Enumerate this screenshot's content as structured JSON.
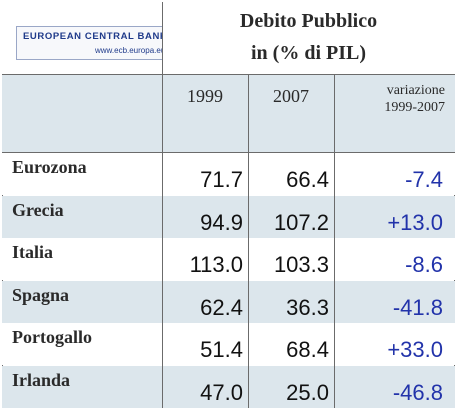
{
  "logo": {
    "name": "EUROPEAN CENTRAL BANK©",
    "url": "www.ecb.europa.eu"
  },
  "chart_data": {
    "type": "table",
    "title": "Debito Pubblico",
    "subtitle": "in (% di PIL)",
    "columns": [
      "1999",
      "2007",
      "variazione\n1999-2007"
    ],
    "rows": [
      {
        "country": "Eurozona",
        "v1999": "71.7",
        "v2007": "66.4",
        "change": "-7.4"
      },
      {
        "country": "Grecia",
        "v1999": "94.9",
        "v2007": "107.2",
        "change": "+13.0"
      },
      {
        "country": "Italia",
        "v1999": "113.0",
        "v2007": "103.3",
        "change": "-8.6"
      },
      {
        "country": "Spagna",
        "v1999": "62.4",
        "v2007": "36.3",
        "change": "-41.8"
      },
      {
        "country": "Portogallo",
        "v1999": "51.4",
        "v2007": "68.4",
        "change": "+33.0"
      },
      {
        "country": "Irlanda",
        "v1999": "47.0",
        "v2007": "25.0",
        "change": "-46.8"
      }
    ]
  },
  "colors": {
    "band": "#dce6ec",
    "change_text": "#2233aa",
    "logo_text": "#1f3a8a"
  }
}
